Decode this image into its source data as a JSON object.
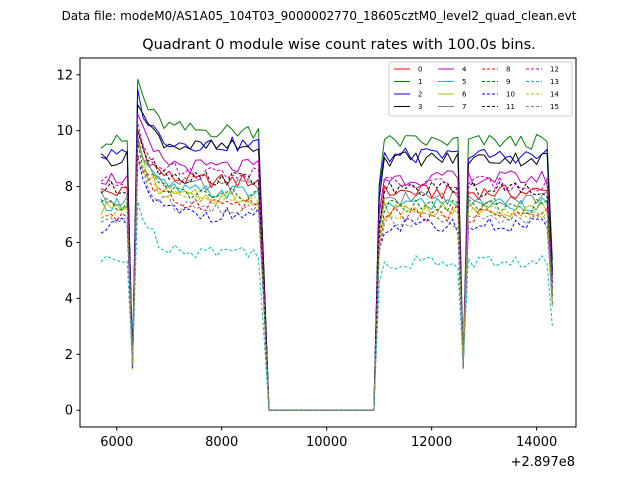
{
  "figure": {
    "suptitle": "Data file: modeM0/AS1A05_104T03_9000002770_18605cztM0_level2_quad_clean.evt",
    "title": "Quadrant 0 module wise count rates with 100.0s bins.",
    "x_offset_label": "+2.897e8"
  },
  "chart_data": {
    "type": "line",
    "title": "Quadrant 0 module wise count rates with 100.0s bins.",
    "xlabel": "",
    "ylabel": "",
    "x_offset": 289700000,
    "xlim": [
      5300,
      14750
    ],
    "ylim": [
      -0.6,
      12.6
    ],
    "xticks": [
      6000,
      8000,
      10000,
      12000,
      14000
    ],
    "xtick_labels": [
      "6000",
      "8000",
      "10000",
      "12000",
      "14000"
    ],
    "yticks": [
      0,
      2,
      4,
      6,
      8,
      10,
      12
    ],
    "ytick_labels": [
      "0",
      "2",
      "4",
      "6",
      "8",
      "10",
      "12"
    ],
    "grid": false,
    "legend_position": "top-right",
    "legend_columns": 4,
    "segments": [
      {
        "x_start": 5700,
        "x_end": 6200,
        "shape": "normal"
      },
      {
        "x_start": 6300,
        "x_end": 6300,
        "shape": "dip"
      },
      {
        "x_start": 6400,
        "x_end": 8700,
        "shape": "decay"
      },
      {
        "x_start": 8800,
        "x_end": 8800,
        "shape": "falloff"
      },
      {
        "x_start": 8900,
        "x_end": 10900,
        "shape": "zero"
      },
      {
        "x_start": 11000,
        "x_end": 11000,
        "shape": "rise"
      },
      {
        "x_start": 11100,
        "x_end": 12500,
        "shape": "normal"
      },
      {
        "x_start": 12600,
        "x_end": 12600,
        "shape": "dip"
      },
      {
        "x_start": 12700,
        "x_end": 14200,
        "shape": "normal"
      },
      {
        "x_start": 14300,
        "x_end": 14300,
        "shape": "falloff"
      }
    ],
    "series": [
      {
        "name": "0",
        "color": "#ff0000",
        "style": "solid",
        "level": 7.8
      },
      {
        "name": "1",
        "color": "#008000",
        "style": "solid",
        "level": 9.6
      },
      {
        "name": "2",
        "color": "#0000ff",
        "style": "solid",
        "level": 9.1
      },
      {
        "name": "3",
        "color": "#000000",
        "style": "solid",
        "level": 9.0
      },
      {
        "name": "4",
        "color": "#bf00bf",
        "style": "solid",
        "level": 8.3
      },
      {
        "name": "5",
        "color": "#00bfbf",
        "style": "solid",
        "level": 7.4
      },
      {
        "name": "6",
        "color": "#bfbf00",
        "style": "solid",
        "level": 7.2
      },
      {
        "name": "7",
        "color": "#808080",
        "style": "solid",
        "level": 7.6
      },
      {
        "name": "8",
        "color": "#ff0000",
        "style": "dashed",
        "level": 7.0
      },
      {
        "name": "9",
        "color": "#008000",
        "style": "dashed",
        "level": 7.3
      },
      {
        "name": "10",
        "color": "#0000ff",
        "style": "dashed",
        "level": 6.6
      },
      {
        "name": "11",
        "color": "#000000",
        "style": "dashed",
        "level": 7.9
      },
      {
        "name": "12",
        "color": "#bf00bf",
        "style": "dashed",
        "level": 8.1
      },
      {
        "name": "13",
        "color": "#00bfbf",
        "style": "dashed",
        "level": 5.3
      },
      {
        "name": "14",
        "color": "#bfbf00",
        "style": "dashed",
        "level": 7.1
      },
      {
        "name": "15",
        "color": "#808080",
        "style": "dashed",
        "level": 6.8
      }
    ]
  }
}
